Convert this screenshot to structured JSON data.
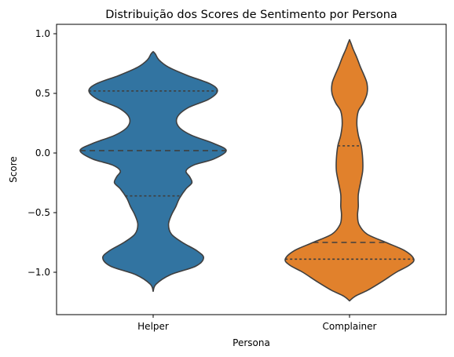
{
  "chart_data": {
    "type": "violin",
    "title": "Distribuição dos Scores de Sentimento por Persona",
    "xlabel": "Persona",
    "ylabel": "Score",
    "ylim": [
      -1.35,
      1.02
    ],
    "yticks": [
      -1.0,
      -0.5,
      0.0,
      0.5,
      1.0
    ],
    "ytick_labels": [
      "−1.0",
      "−0.5",
      "0.0",
      "0.5",
      "1.0"
    ],
    "categories": [
      "Helper",
      "Complainer"
    ],
    "grid": false,
    "series": [
      {
        "category": "Helper",
        "color": "#3274a1",
        "y_min": -1.16,
        "y_max": 0.85,
        "quartiles": [
          -0.36,
          0.02,
          0.52
        ],
        "density": [
          [
            -1.16,
            0.0
          ],
          [
            -1.1,
            0.04
          ],
          [
            -1.02,
            0.24
          ],
          [
            -0.95,
            0.58
          ],
          [
            -0.88,
            0.69
          ],
          [
            -0.82,
            0.6
          ],
          [
            -0.75,
            0.4
          ],
          [
            -0.68,
            0.25
          ],
          [
            -0.6,
            0.21
          ],
          [
            -0.52,
            0.25
          ],
          [
            -0.45,
            0.31
          ],
          [
            -0.38,
            0.36
          ],
          [
            -0.3,
            0.45
          ],
          [
            -0.25,
            0.53
          ],
          [
            -0.2,
            0.5
          ],
          [
            -0.15,
            0.45
          ],
          [
            -0.1,
            0.56
          ],
          [
            -0.05,
            0.83
          ],
          [
            0.02,
            1.0
          ],
          [
            0.08,
            0.83
          ],
          [
            0.15,
            0.52
          ],
          [
            0.22,
            0.35
          ],
          [
            0.3,
            0.33
          ],
          [
            0.38,
            0.48
          ],
          [
            0.45,
            0.76
          ],
          [
            0.52,
            0.88
          ],
          [
            0.58,
            0.78
          ],
          [
            0.65,
            0.47
          ],
          [
            0.72,
            0.21
          ],
          [
            0.78,
            0.08
          ],
          [
            0.83,
            0.03
          ],
          [
            0.85,
            0.0
          ]
        ]
      },
      {
        "category": "Complainer",
        "color": "#e1812c",
        "y_min": -1.24,
        "y_max": 0.95,
        "quartiles": [
          -0.89,
          -0.75,
          0.06
        ],
        "density": [
          [
            -1.24,
            0.0
          ],
          [
            -1.2,
            0.08
          ],
          [
            -1.15,
            0.25
          ],
          [
            -1.08,
            0.44
          ],
          [
            -1.0,
            0.64
          ],
          [
            -0.94,
            0.82
          ],
          [
            -0.89,
            0.88
          ],
          [
            -0.82,
            0.76
          ],
          [
            -0.75,
            0.5
          ],
          [
            -0.68,
            0.24
          ],
          [
            -0.6,
            0.13
          ],
          [
            -0.52,
            0.11
          ],
          [
            -0.45,
            0.12
          ],
          [
            -0.35,
            0.12
          ],
          [
            -0.25,
            0.15
          ],
          [
            -0.15,
            0.18
          ],
          [
            -0.05,
            0.18
          ],
          [
            0.06,
            0.16
          ],
          [
            0.15,
            0.12
          ],
          [
            0.25,
            0.1
          ],
          [
            0.35,
            0.12
          ],
          [
            0.42,
            0.19
          ],
          [
            0.5,
            0.24
          ],
          [
            0.58,
            0.24
          ],
          [
            0.65,
            0.2
          ],
          [
            0.72,
            0.15
          ],
          [
            0.8,
            0.1
          ],
          [
            0.87,
            0.05
          ],
          [
            0.92,
            0.02
          ],
          [
            0.95,
            0.0
          ]
        ]
      }
    ]
  }
}
